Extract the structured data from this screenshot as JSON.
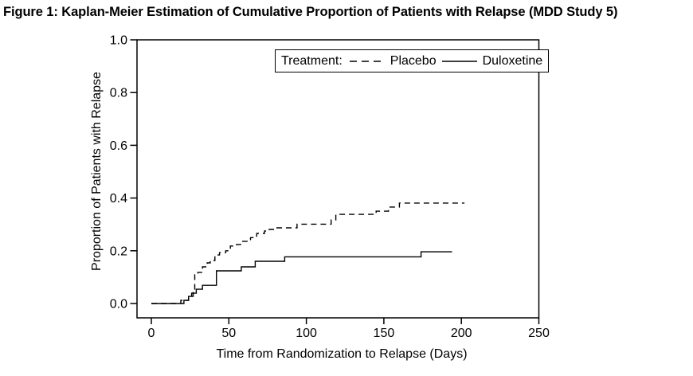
{
  "figure": {
    "title": "Figure 1: Kaplan-Meier Estimation of Cumulative Proportion of Patients with Relapse (MDD Study 5)"
  },
  "chart_data": {
    "type": "line",
    "subtype": "kaplan_meier_step",
    "title": "Figure 1: Kaplan-Meier Estimation of Cumulative Proportion of Patients with Relapse (MDD Study 5)",
    "xlabel": "Time from Randomization to Relapse (Days)",
    "ylabel": "Proportion of Patients with Relapse",
    "xlim": [
      0,
      250
    ],
    "ylim": [
      0.0,
      1.0
    ],
    "xticks": [
      "0",
      "50",
      "100",
      "150",
      "200",
      "250"
    ],
    "yticks": [
      "0.0",
      "0.2",
      "0.4",
      "0.6",
      "0.8",
      "1.0"
    ],
    "grid": false,
    "legend": {
      "title": "Treatment:",
      "position": "top-inside",
      "entries": [
        "Placebo",
        "Duloxetine"
      ]
    },
    "colors": {
      "foreground": "#000000",
      "background": "#ffffff"
    },
    "series": [
      {
        "name": "Placebo",
        "line_style": "dashed",
        "points": [
          [
            0,
            0
          ],
          [
            19,
            0.012
          ],
          [
            24,
            0.027
          ],
          [
            27,
            0.054
          ],
          [
            28,
            0.109
          ],
          [
            30,
            0.118
          ],
          [
            33,
            0.139
          ],
          [
            36,
            0.154
          ],
          [
            38,
            0.163
          ],
          [
            41,
            0.184
          ],
          [
            44,
            0.193
          ],
          [
            48,
            0.2
          ],
          [
            51,
            0.218
          ],
          [
            55,
            0.224
          ],
          [
            59,
            0.236
          ],
          [
            64,
            0.25
          ],
          [
            68,
            0.266
          ],
          [
            73,
            0.275
          ],
          [
            76,
            0.281
          ],
          [
            80,
            0.287
          ],
          [
            94,
            0.301
          ],
          [
            116,
            0.317
          ],
          [
            119,
            0.338
          ],
          [
            145,
            0.35
          ],
          [
            153,
            0.366
          ],
          [
            160,
            0.381
          ],
          [
            202,
            0.381
          ]
        ]
      },
      {
        "name": "Duloxetine",
        "line_style": "solid",
        "points": [
          [
            0,
            0
          ],
          [
            21,
            0.012
          ],
          [
            24,
            0.027
          ],
          [
            26,
            0.039
          ],
          [
            29,
            0.054
          ],
          [
            33,
            0.069
          ],
          [
            42,
            0.124
          ],
          [
            58,
            0.139
          ],
          [
            67,
            0.16
          ],
          [
            86,
            0.177
          ],
          [
            174,
            0.196
          ],
          [
            194,
            0.196
          ]
        ]
      }
    ]
  }
}
